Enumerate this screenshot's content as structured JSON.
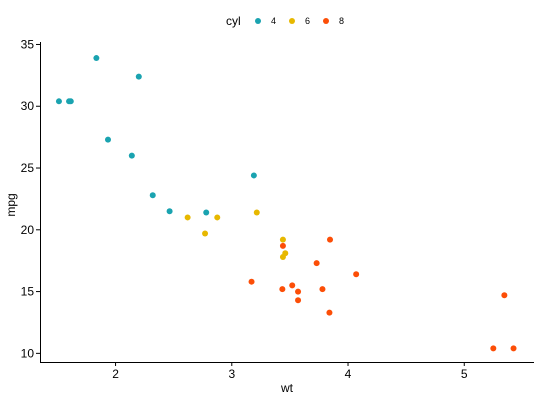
{
  "chart_data": {
    "type": "scatter",
    "xlabel": "wt",
    "ylabel": "mpg",
    "xlim": [
      1.35,
      5.6
    ],
    "ylim": [
      9.3,
      35.2
    ],
    "xticks": [
      2,
      3,
      4,
      5
    ],
    "yticks": [
      10,
      15,
      20,
      25,
      30,
      35
    ],
    "grid": false,
    "legend": {
      "title": "cyl",
      "placement": "top"
    },
    "series": [
      {
        "name": "4",
        "color": "#1AA3B0",
        "x": [
          2.32,
          3.19,
          2.2,
          1.615,
          1.835,
          2.465,
          1.935,
          2.14,
          1.513,
          2.78,
          1.6
        ],
        "y": [
          22.8,
          24.4,
          32.4,
          30.4,
          33.9,
          21.5,
          27.3,
          26.0,
          30.4,
          21.4,
          30.4
        ]
      },
      {
        "name": "6",
        "color": "#E7B800",
        "x": [
          2.62,
          2.875,
          3.215,
          3.46,
          3.44,
          3.44,
          2.77
        ],
        "y": [
          21.0,
          21.0,
          21.4,
          18.1,
          19.2,
          17.8,
          19.7
        ]
      },
      {
        "name": "8",
        "color": "#FC4E07",
        "x": [
          3.44,
          3.57,
          4.07,
          3.73,
          3.78,
          5.25,
          5.424,
          5.345,
          3.52,
          3.435,
          3.84,
          3.845,
          3.17,
          3.57
        ],
        "y": [
          18.7,
          14.3,
          16.4,
          17.3,
          15.2,
          10.4,
          10.4,
          14.7,
          15.5,
          15.2,
          13.3,
          19.2,
          15.8,
          15.0
        ]
      }
    ]
  }
}
